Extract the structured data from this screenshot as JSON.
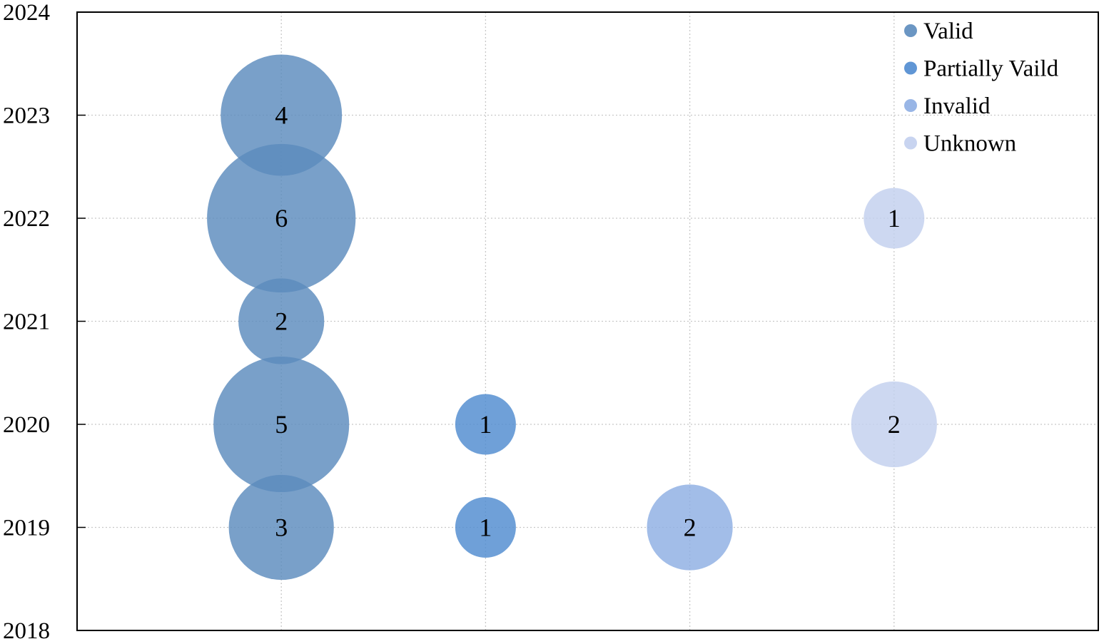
{
  "chart_data": {
    "type": "scatter",
    "title": "",
    "xlabel": "",
    "ylabel": "",
    "ylim": [
      2018,
      2024
    ],
    "yticks": [
      "2018",
      "2019",
      "2020",
      "2021",
      "2022",
      "2023",
      "2024"
    ],
    "xlim": [
      0,
      5
    ],
    "grid": true,
    "legend_position": "top-right",
    "series": [
      {
        "name": "Valid",
        "color": "#5b8bbd",
        "points": [
          {
            "x": 1,
            "y": 2023,
            "value": 4,
            "label": "4"
          },
          {
            "x": 1,
            "y": 2022,
            "value": 6,
            "label": "6"
          },
          {
            "x": 1,
            "y": 2021,
            "value": 2,
            "label": "2"
          },
          {
            "x": 1,
            "y": 2020,
            "value": 5,
            "label": "5"
          },
          {
            "x": 1,
            "y": 2019,
            "value": 3,
            "label": "3"
          }
        ]
      },
      {
        "name": "Partially Vaild",
        "color": "#4f8bd0",
        "points": [
          {
            "x": 2,
            "y": 2020,
            "value": 1,
            "label": "1"
          },
          {
            "x": 2,
            "y": 2019,
            "value": 1,
            "label": "1"
          }
        ]
      },
      {
        "name": "Invalid",
        "color": "#8eaee3",
        "points": [
          {
            "x": 3,
            "y": 2019,
            "value": 2,
            "label": "2"
          }
        ]
      },
      {
        "name": "Unknown",
        "color": "#c2cfee",
        "points": [
          {
            "x": 4,
            "y": 2022,
            "value": 1,
            "label": "1"
          },
          {
            "x": 4,
            "y": 2020,
            "value": 2,
            "label": "2"
          }
        ]
      }
    ]
  }
}
